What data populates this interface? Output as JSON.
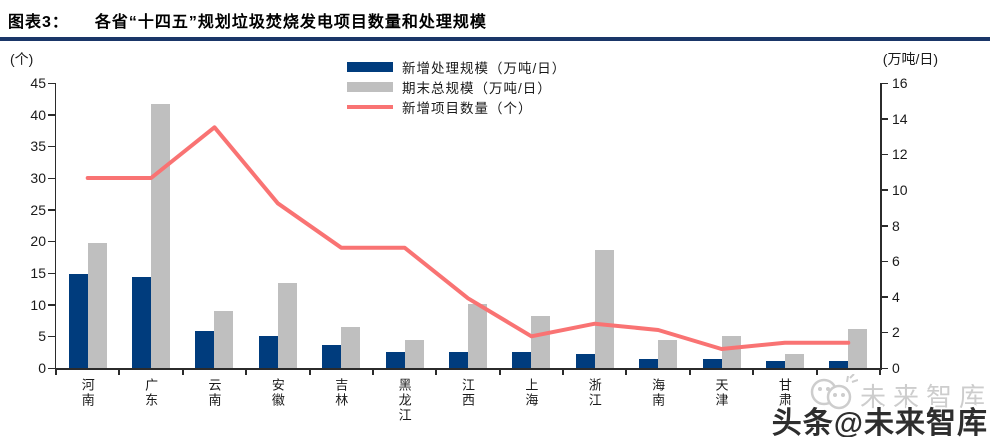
{
  "header": {
    "title_prefix": "图表3：",
    "title": "各省“十四五”规划垃圾焚烧发电项目数量和处理规模"
  },
  "chart_data": {
    "type": "bar",
    "subtype": "grouped-bars-with-line-dual-axis",
    "categories": [
      "河南",
      "广东",
      "云南",
      "安徽",
      "吉林",
      "黑龙江",
      "江西",
      "上海",
      "浙江",
      "海南",
      "天津",
      "甘肃",
      ""
    ],
    "series": [
      {
        "name": "新增处理规模（万吨/日）",
        "kind": "bar",
        "axis": "right",
        "color": "#003c7d",
        "values": [
          5.3,
          5.1,
          2.1,
          1.8,
          1.3,
          0.9,
          0.9,
          0.9,
          0.8,
          0.5,
          0.5,
          0.4,
          0.4
        ]
      },
      {
        "name": "期末总规模（万吨/日）",
        "kind": "bar",
        "axis": "right",
        "color": "#bfbfbf",
        "values": [
          7.0,
          14.8,
          3.2,
          4.8,
          2.3,
          1.6,
          3.6,
          2.9,
          6.6,
          1.6,
          1.8,
          0.8,
          2.2
        ]
      },
      {
        "name": "新增项目数量（个）",
        "kind": "line",
        "axis": "left",
        "color": "#f97373",
        "values": [
          30,
          30,
          38,
          26,
          19,
          19,
          11,
          5,
          7,
          6,
          3,
          4,
          4
        ]
      }
    ],
    "left_axis": {
      "label": "(个)",
      "min": 0,
      "max": 45,
      "ticks": [
        0,
        5,
        10,
        15,
        20,
        25,
        30,
        35,
        40,
        45
      ]
    },
    "right_axis": {
      "label": "(万吨/日)",
      "min": 0,
      "max": 16,
      "ticks": [
        0,
        2,
        4,
        6,
        8,
        10,
        12,
        14,
        16
      ]
    },
    "grid": false,
    "legend_position": "top-center",
    "note": "label of last category hidden behind watermark"
  },
  "colors": {
    "bar_new": "#003c7d",
    "bar_total": "#bfbfbf",
    "line_projects": "#f97373",
    "title_rule": "#1a3668",
    "axis": "#2b2b2b"
  },
  "watermark": {
    "light_text": "未来智库",
    "bold_text": "头条@未来智库"
  }
}
